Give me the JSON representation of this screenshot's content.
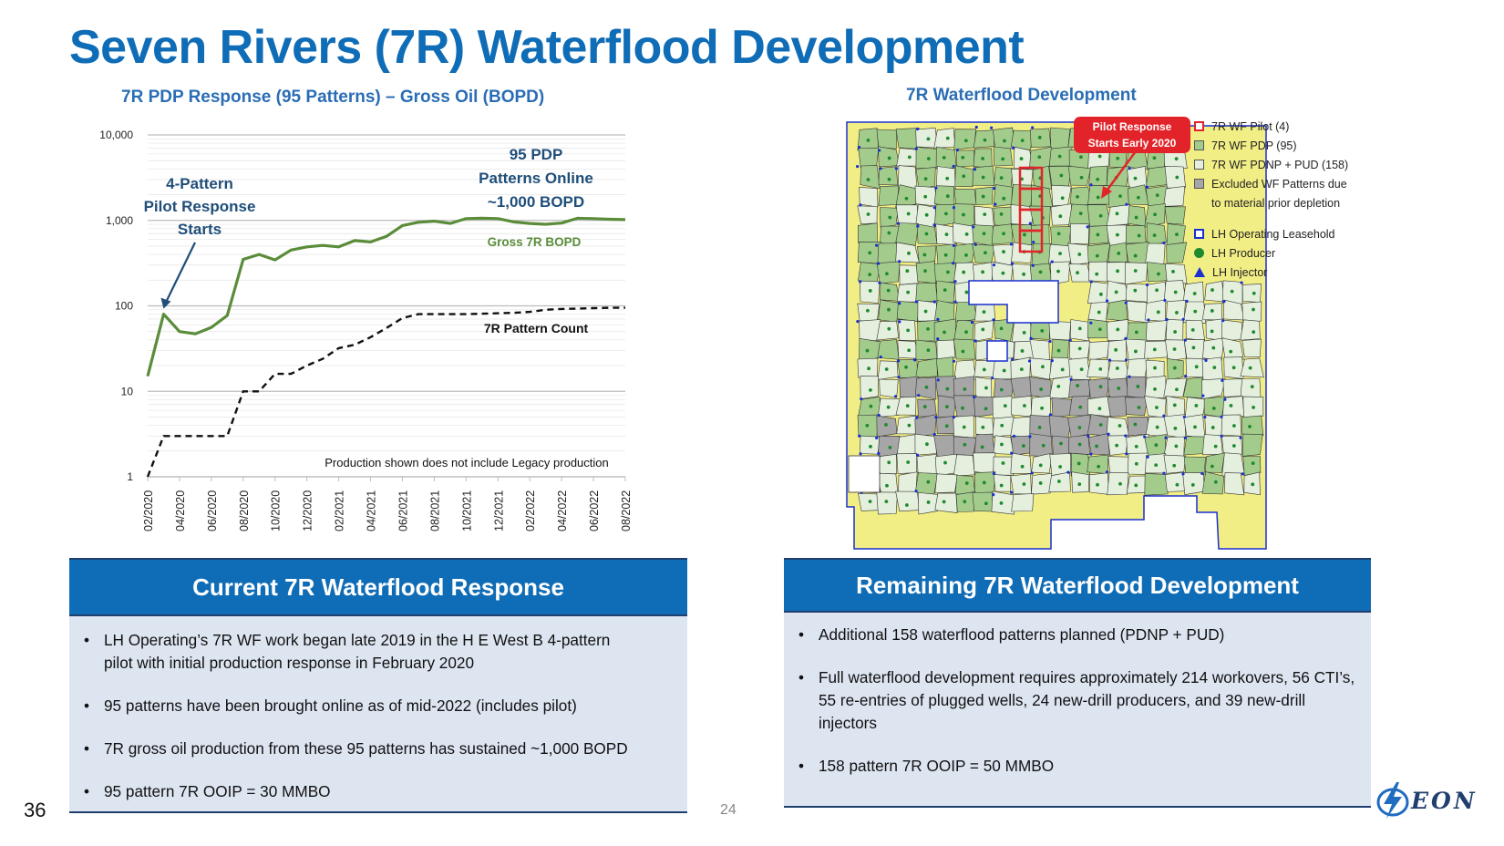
{
  "title": "Seven Rivers (7R) Waterflood Development",
  "chart": {
    "subtitle": "7R PDP Response (95 Patterns) – Gross Oil (BOPD)",
    "annotation_pilot": [
      "4-Pattern",
      "Pilot Response",
      "Starts"
    ],
    "annotation_pdp": [
      "95 PDP",
      "Patterns Online",
      "~1,000 BOPD"
    ],
    "series_label_oil": "Gross 7R BOPD",
    "series_label_count": "7R Pattern Count",
    "footnote": "Production shown does not include Legacy production",
    "colors": {
      "oil": "#5a8c3a",
      "count": "#111111",
      "annotation": "#1f4e79"
    }
  },
  "chart_data": {
    "type": "line",
    "title": "7R PDP Response (95 Patterns) – Gross Oil (BOPD)",
    "yscale": "log",
    "ylim": [
      1,
      10000
    ],
    "yticks": [
      "1",
      "10",
      "100",
      "1,000",
      "10,000"
    ],
    "x": [
      "02/2020",
      "03/2020",
      "04/2020",
      "05/2020",
      "06/2020",
      "07/2020",
      "08/2020",
      "09/2020",
      "10/2020",
      "11/2020",
      "12/2020",
      "01/2021",
      "02/2021",
      "03/2021",
      "04/2021",
      "05/2021",
      "06/2021",
      "07/2021",
      "08/2021",
      "09/2021",
      "10/2021",
      "11/2021",
      "12/2021",
      "01/2022",
      "02/2022",
      "03/2022",
      "04/2022",
      "05/2022",
      "06/2022",
      "07/2022",
      "08/2022"
    ],
    "xtick_labels": [
      "02/2020",
      "04/2020",
      "06/2020",
      "08/2020",
      "10/2020",
      "12/2020",
      "02/2021",
      "04/2021",
      "06/2021",
      "08/2021",
      "10/2021",
      "12/2021",
      "02/2022",
      "04/2022",
      "06/2022",
      "08/2022"
    ],
    "series": [
      {
        "name": "Gross 7R BOPD",
        "style": "solid",
        "values": [
          15,
          80,
          50,
          47,
          56,
          77,
          350,
          400,
          345,
          450,
          490,
          510,
          490,
          580,
          560,
          650,
          870,
          950,
          980,
          920,
          1050,
          1060,
          1050,
          960,
          920,
          900,
          930,
          1060,
          1050,
          1030,
          1020
        ]
      },
      {
        "name": "7R Pattern Count",
        "style": "dashed",
        "values": [
          1,
          3,
          3,
          3,
          3,
          3,
          10,
          10,
          16,
          16,
          20,
          24,
          32,
          35,
          43,
          55,
          72,
          80,
          80,
          80,
          80,
          81,
          82,
          83,
          85,
          90,
          92,
          93,
          94,
          95,
          95
        ]
      }
    ]
  },
  "map": {
    "subtitle": "7R Waterflood Development",
    "callout": [
      "Pilot Response",
      "Starts Early 2020"
    ],
    "legend": [
      {
        "label": "7R WF Pilot (4)",
        "swatch": "pilot"
      },
      {
        "label": "7R WF PDP (95)",
        "swatch": "pdp"
      },
      {
        "label": "7R WF PDNP + PUD (158)",
        "swatch": "pdnp"
      },
      {
        "label": "Excluded WF Patterns due",
        "swatch": "excluded"
      },
      {
        "label": "to material prior depletion",
        "swatch": "none"
      },
      {
        "label": "LH Operating Leasehold",
        "swatch": "leasehold"
      },
      {
        "label": "LH Producer",
        "swatch": "producer"
      },
      {
        "label": "LH Injector",
        "swatch": "injector"
      }
    ],
    "colors": {
      "leasehold": "#f2ee86",
      "pdp": "#a3cc8c",
      "pdnp": "#e4efdd",
      "excluded": "#a6a6a6",
      "pilot": "#e2242a",
      "producer": "#1e8a2e",
      "injector": "#1a2fcf"
    }
  },
  "left_panel": {
    "header": "Current 7R Waterflood Response",
    "bullets": [
      "LH Operating’s 7R WF work began late 2019 in the H E West B 4-pattern pilot with initial production response in February 2020",
      "95 patterns have been brought online as of mid-2022 (includes pilot)",
      "7R gross oil production from these 95 patterns has sustained ~1,000 BOPD",
      "95 pattern 7R OOIP = 30 MMBO"
    ]
  },
  "right_panel": {
    "header": "Remaining 7R Waterflood Development",
    "bullets": [
      "Additional 158 waterflood patterns planned (PDNP + PUD)",
      "Full waterflood development requires approximately 214 workovers, 56 CTI’s, 55 re-entries of plugged wells, 24 new-drill producers, and 39 new-drill injectors",
      "158 pattern 7R OOIP = 50 MMBO"
    ]
  },
  "slide_number": "36",
  "page_number": "24",
  "logo_text": "EON"
}
